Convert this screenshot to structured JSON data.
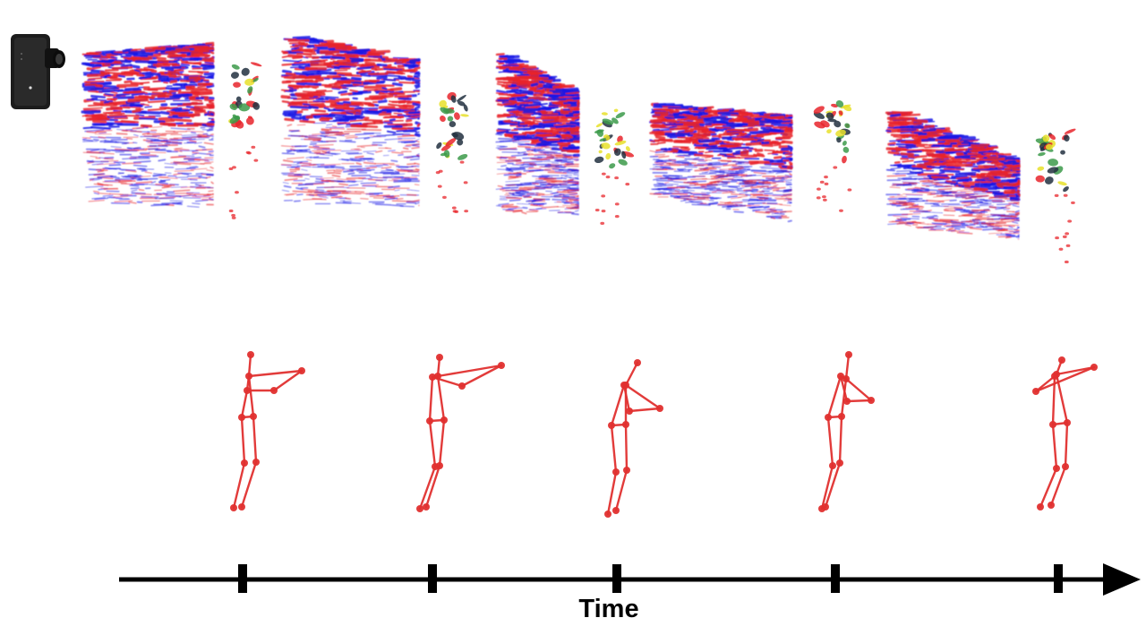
{
  "timeline": {
    "label": "Time",
    "tick_count": 5
  },
  "colors": {
    "event_positive": "#e8252b",
    "event_negative": "#1a1ae6",
    "frame_accent_yellow": "#e8e02a",
    "frame_accent_green": "#3c9a4a",
    "frame_accent_dark": "#223040",
    "skeleton": "#e0302f",
    "axis": "#000000"
  },
  "icons": {
    "camera": "event-camera-icon"
  }
}
